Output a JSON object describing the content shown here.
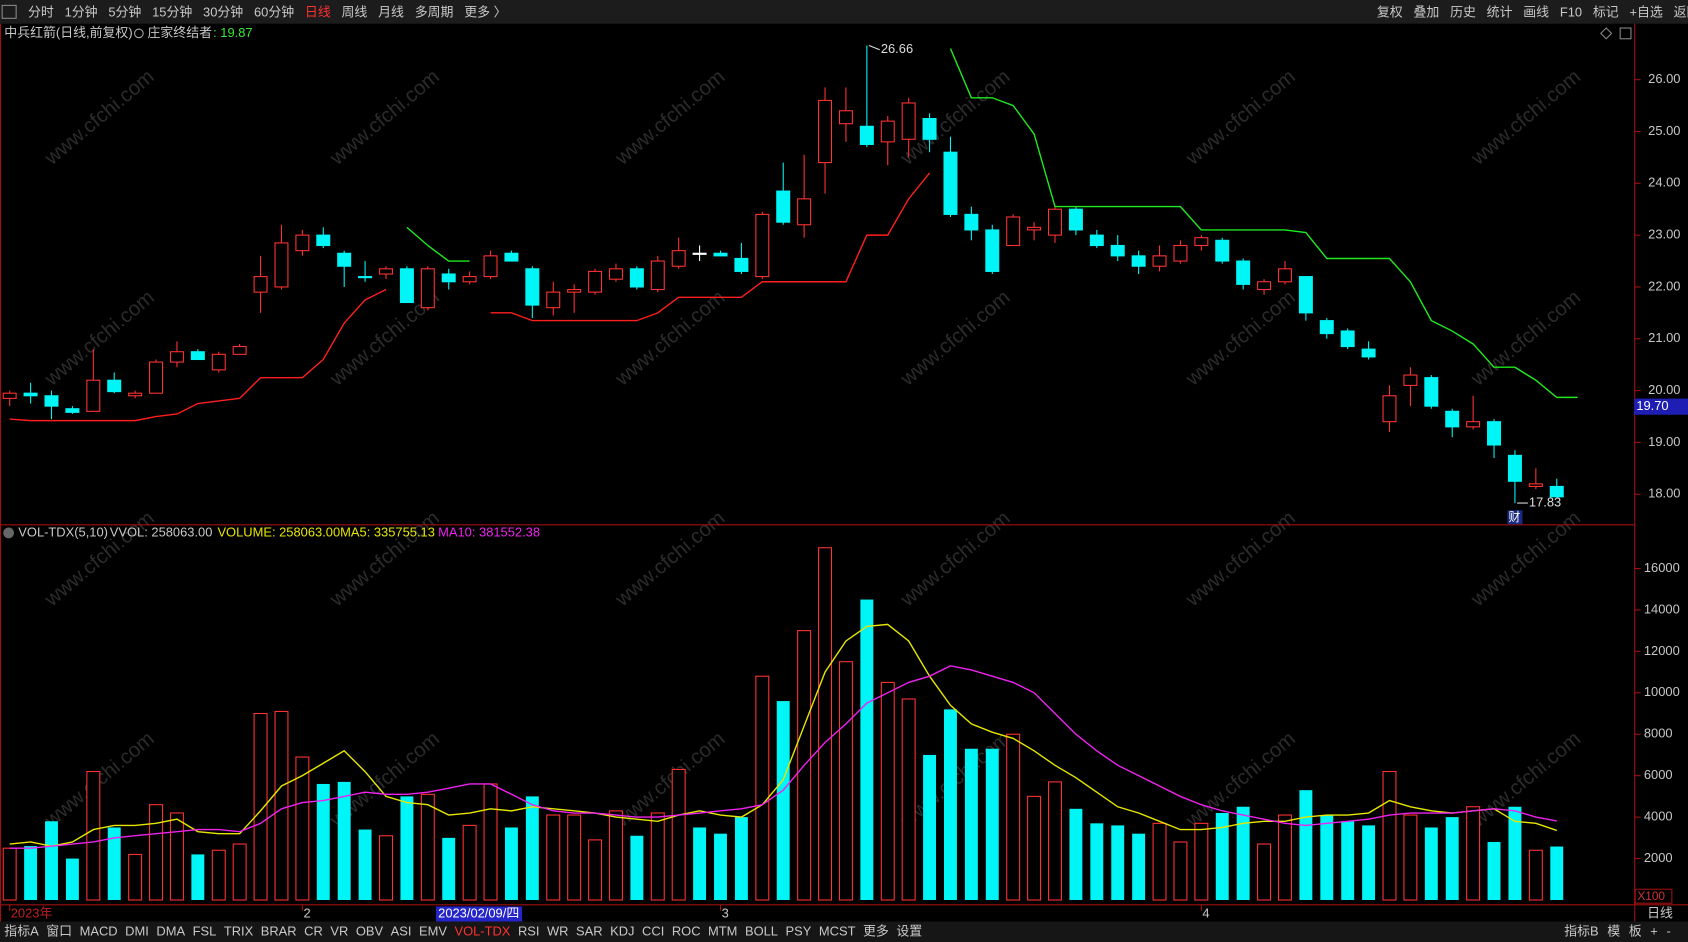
{
  "toolbar": {
    "tabs": [
      "分时",
      "1分钟",
      "5分钟",
      "15分钟",
      "30分钟",
      "60分钟",
      "日线",
      "周线",
      "月线",
      "多周期",
      "更多 〉"
    ],
    "active": "日线",
    "actions": [
      "复权",
      "叠加",
      "历史",
      "统计",
      "画线",
      "F10",
      "标记",
      "+自选",
      "返回"
    ]
  },
  "bottom_bar": {
    "tabs": [
      "指标A",
      "窗口",
      "MACD",
      "DMI",
      "DMA",
      "FSL",
      "TRIX",
      "BRAR",
      "CR",
      "VR",
      "OBV",
      "ASI",
      "EMV",
      "VOL-TDX",
      "RSI",
      "WR",
      "SAR",
      "KDJ",
      "CCI",
      "ROC",
      "MTM",
      "BOLL",
      "PSY",
      "MCST",
      "更多",
      "设置"
    ],
    "active": "VOL-TDX",
    "right": [
      "指标B",
      "模",
      "板",
      "+",
      "-"
    ]
  },
  "watermark": "www.cfchi.com",
  "period_label": "日线",
  "cursor": {
    "date": "2023/02/09/四",
    "price": {
      "value": 19.7,
      "label": "19.70"
    }
  },
  "chart_data": [
    {
      "type": "candlestick",
      "title": "中兵红箭(日线,前复权)",
      "indicator": "庄家终结者",
      "indicator_value": ": 19.87",
      "categories": [
        "2023年",
        null,
        null,
        null,
        null,
        null,
        null,
        null,
        null,
        null,
        null,
        null,
        null,
        null,
        "2",
        null,
        null,
        null,
        null,
        null,
        null,
        null,
        null,
        null,
        null,
        null,
        null,
        null,
        null,
        null,
        null,
        null,
        null,
        null,
        "3",
        null,
        null,
        null,
        null,
        null,
        null,
        null,
        null,
        null,
        null,
        null,
        null,
        null,
        null,
        null,
        null,
        null,
        null,
        null,
        null,
        null,
        null,
        "4",
        null,
        null,
        null,
        null,
        null,
        null,
        null,
        null,
        null,
        null,
        null,
        null,
        null,
        null,
        null,
        null,
        null
      ],
      "open": [
        19.85,
        19.95,
        19.9,
        19.65,
        19.6,
        20.2,
        19.9,
        19.95,
        20.55,
        20.75,
        20.4,
        20.7,
        21.9,
        22.0,
        22.7,
        23.0,
        22.65,
        22.2,
        22.25,
        22.35,
        21.6,
        22.25,
        22.1,
        22.2,
        22.65,
        22.35,
        21.6,
        21.9,
        21.9,
        22.15,
        22.35,
        21.95,
        22.4,
        22.65,
        22.65,
        22.55,
        22.2,
        23.85,
        23.2,
        24.4,
        25.15,
        25.1,
        24.8,
        24.85,
        25.25,
        24.6,
        23.4,
        23.1,
        22.8,
        23.1,
        23.0,
        23.5,
        23.0,
        22.8,
        22.6,
        22.4,
        22.5,
        22.8,
        22.9,
        22.5,
        21.95,
        22.1,
        22.2,
        21.35,
        21.15,
        20.8,
        19.4,
        20.1,
        20.25,
        19.6,
        19.3,
        19.4,
        18.75,
        18.15,
        18.15
      ],
      "high": [
        20.0,
        20.15,
        20.0,
        19.7,
        20.8,
        20.35,
        20.0,
        20.6,
        20.95,
        20.8,
        20.75,
        20.9,
        22.6,
        23.2,
        23.1,
        23.15,
        22.7,
        22.5,
        22.4,
        22.4,
        22.4,
        22.35,
        22.3,
        22.7,
        22.7,
        22.4,
        22.1,
        22.05,
        22.35,
        22.45,
        22.4,
        22.6,
        22.95,
        22.8,
        22.7,
        22.85,
        23.45,
        24.4,
        24.55,
        25.85,
        25.85,
        26.66,
        25.3,
        25.65,
        25.35,
        24.9,
        23.55,
        23.2,
        23.4,
        23.25,
        23.55,
        23.55,
        23.1,
        23.0,
        22.7,
        22.8,
        22.9,
        23.0,
        22.95,
        22.55,
        22.15,
        22.5,
        22.2,
        21.4,
        21.2,
        20.95,
        20.1,
        20.45,
        20.3,
        19.65,
        19.9,
        19.45,
        18.85,
        18.5,
        18.3
      ],
      "low": [
        19.7,
        19.75,
        19.45,
        19.55,
        19.6,
        19.95,
        19.85,
        19.95,
        20.45,
        20.6,
        20.35,
        20.7,
        21.5,
        21.95,
        22.6,
        22.75,
        22.0,
        22.1,
        22.15,
        21.7,
        21.55,
        21.95,
        22.05,
        22.15,
        22.5,
        21.4,
        21.45,
        21.5,
        21.85,
        22.1,
        21.95,
        21.9,
        22.35,
        22.5,
        22.6,
        22.25,
        22.15,
        23.2,
        22.95,
        23.8,
        24.8,
        24.7,
        24.35,
        24.5,
        24.6,
        23.35,
        22.9,
        22.25,
        22.8,
        22.9,
        22.85,
        23.0,
        22.75,
        22.5,
        22.25,
        22.3,
        22.45,
        22.7,
        22.45,
        21.95,
        21.85,
        22.05,
        21.35,
        21.0,
        20.8,
        20.6,
        19.2,
        19.7,
        19.65,
        19.1,
        19.25,
        18.7,
        17.83,
        18.1,
        17.95
      ],
      "close": [
        19.95,
        19.9,
        19.7,
        19.58,
        20.2,
        19.98,
        19.95,
        20.55,
        20.75,
        20.6,
        20.7,
        20.85,
        22.2,
        22.85,
        23.0,
        22.8,
        22.4,
        22.18,
        22.35,
        21.7,
        22.35,
        22.1,
        22.2,
        22.6,
        22.5,
        21.65,
        21.9,
        21.95,
        22.3,
        22.35,
        22.0,
        22.5,
        22.7,
        22.65,
        22.6,
        22.3,
        23.4,
        23.25,
        23.7,
        25.6,
        25.4,
        24.75,
        25.2,
        25.55,
        24.85,
        23.4,
        23.1,
        22.3,
        23.35,
        23.15,
        23.5,
        23.1,
        22.8,
        22.6,
        22.4,
        22.6,
        22.8,
        22.95,
        22.5,
        22.05,
        22.1,
        22.35,
        21.5,
        21.1,
        20.85,
        20.65,
        19.9,
        20.3,
        19.7,
        19.3,
        19.4,
        18.95,
        18.25,
        18.2,
        17.95
      ],
      "up_color": "#ff3232",
      "down_color": "#00f6f6",
      "flat_color": "#ffffff",
      "support_line": {
        "color": "#ff1e1e",
        "values": [
          19.45,
          19.42,
          19.42,
          19.42,
          19.42,
          19.42,
          19.42,
          19.5,
          19.55,
          19.75,
          19.8,
          19.85,
          20.25,
          20.25,
          20.25,
          20.6,
          21.3,
          21.75,
          21.95,
          null,
          null,
          null,
          null,
          21.5,
          21.5,
          21.35,
          21.35,
          21.35,
          21.35,
          21.35,
          21.35,
          21.5,
          21.8,
          21.8,
          21.8,
          21.8,
          22.1,
          22.1,
          22.1,
          22.1,
          22.1,
          23.0,
          23.0,
          23.7,
          24.2,
          null,
          null,
          null,
          null,
          null,
          null,
          null,
          null,
          null,
          null,
          null,
          null,
          null,
          null,
          null,
          null,
          null,
          null,
          null,
          null,
          null,
          null,
          null,
          null,
          null,
          null,
          null,
          null,
          null,
          null
        ]
      },
      "resistance_line": {
        "color": "#1eea1e",
        "values": [
          null,
          null,
          null,
          null,
          null,
          null,
          null,
          null,
          null,
          null,
          null,
          null,
          null,
          null,
          null,
          null,
          null,
          null,
          null,
          23.15,
          22.8,
          22.5,
          22.5,
          null,
          null,
          null,
          null,
          null,
          null,
          null,
          null,
          null,
          null,
          null,
          null,
          null,
          null,
          null,
          null,
          null,
          null,
          null,
          null,
          null,
          null,
          26.6,
          25.65,
          25.65,
          25.5,
          24.95,
          23.55,
          23.55,
          23.55,
          23.55,
          23.55,
          23.55,
          23.55,
          23.1,
          23.1,
          23.1,
          23.1,
          23.1,
          23.05,
          22.55,
          22.55,
          22.55,
          22.55,
          22.1,
          21.35,
          21.15,
          20.9,
          20.45,
          20.45,
          20.2,
          19.87,
          19.87
        ]
      },
      "event_marker": "财",
      "ylim": [
        17.42,
        27.08
      ],
      "yticks": [
        {
          "value": 18,
          "label": "18.00"
        },
        {
          "value": 19,
          "label": "19.00"
        },
        {
          "value": 20,
          "label": "20.00"
        },
        {
          "value": 21,
          "label": "21.00"
        },
        {
          "value": 22,
          "label": "22.00"
        },
        {
          "value": 23,
          "label": "23.00"
        },
        {
          "value": 24,
          "label": "24.00"
        },
        {
          "value": 25,
          "label": "25.00"
        },
        {
          "value": 26,
          "label": "26.00"
        }
      ]
    },
    {
      "type": "bar",
      "title": "VOL-TDX(5,10)",
      "vvol": "VVOL: 258063.00",
      "volume": "VOLUME: 258063.00",
      "unit": "X100",
      "values": [
        2500,
        2600,
        3800,
        2000,
        6200,
        3500,
        2200,
        4600,
        4200,
        2200,
        2400,
        2700,
        9000,
        9100,
        6900,
        5600,
        5700,
        3400,
        3100,
        5000,
        5100,
        3000,
        3600,
        5600,
        3500,
        5000,
        4100,
        4100,
        2900,
        4300,
        3100,
        4200,
        6300,
        3500,
        3200,
        4000,
        10800,
        9600,
        13000,
        17000,
        11500,
        14500,
        10500,
        9700,
        7000,
        9200,
        7300,
        7300,
        8000,
        5000,
        5700,
        4400,
        3700,
        3600,
        3200,
        3700,
        2800,
        3700,
        4200,
        4500,
        2700,
        4100,
        5300,
        4100,
        3800,
        3600,
        6200,
        4100,
        3500,
        4000,
        4500,
        2800,
        4500,
        2400,
        2581
      ],
      "lines": [
        {
          "label": "MA5: 335755.13",
          "color": "#e6e600",
          "values": [
            2700,
            2800,
            2600,
            2800,
            3400,
            3600,
            3600,
            3700,
            3900,
            3300,
            3200,
            3200,
            4300,
            5500,
            6000,
            6600,
            7200,
            6200,
            5000,
            4700,
            4600,
            4100,
            4200,
            4400,
            4300,
            4500,
            4400,
            4300,
            4200,
            4000,
            3900,
            3800,
            4100,
            4300,
            4100,
            4000,
            4600,
            5800,
            8400,
            11000,
            12500,
            13200,
            13300,
            12500,
            10800,
            9400,
            8500,
            8100,
            7800,
            7200,
            6500,
            5900,
            5200,
            4500,
            4200,
            3800,
            3400,
            3400,
            3500,
            3700,
            3800,
            3800,
            4000,
            4100,
            4100,
            4200,
            4800,
            4500,
            4300,
            4200,
            4300,
            4400,
            3800,
            3700,
            3358
          ]
        },
        {
          "label": "MA10: 381552.38",
          "color": "#ee22ee",
          "values": [
            2500,
            2500,
            2600,
            2700,
            2800,
            3000,
            3100,
            3200,
            3300,
            3400,
            3400,
            3300,
            3700,
            4400,
            4700,
            4800,
            5000,
            5200,
            5100,
            5100,
            5200,
            5400,
            5600,
            5600,
            5100,
            4600,
            4300,
            4200,
            4200,
            4100,
            4000,
            4000,
            4100,
            4200,
            4300,
            4400,
            4600,
            5300,
            6500,
            7600,
            8500,
            9500,
            10000,
            10500,
            10800,
            11300,
            11100,
            10800,
            10500,
            10000,
            9000,
            8000,
            7200,
            6500,
            6000,
            5500,
            5000,
            4600,
            4300,
            4100,
            3900,
            3700,
            3600,
            3700,
            3800,
            3900,
            4100,
            4200,
            4200,
            4200,
            4300,
            4400,
            4300,
            4000,
            3816
          ]
        }
      ],
      "ylim": [
        0,
        18080
      ],
      "yticks": [
        2000,
        4000,
        6000,
        8000,
        10000,
        12000,
        14000,
        16000
      ]
    }
  ]
}
